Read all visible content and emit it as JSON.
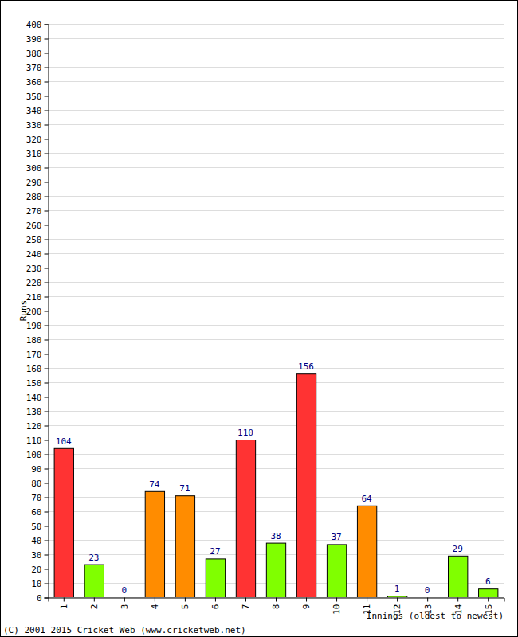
{
  "chart_data": {
    "type": "bar",
    "x_label": "Innings (oldest to newest)",
    "y_label": "Runs",
    "annotations": [
      "(C) 2001-2015 Cricket Web (www.cricketweb.net)"
    ],
    "categories": [
      "1",
      "2",
      "3",
      "4",
      "5",
      "6",
      "7",
      "8",
      "9",
      "10",
      "11",
      "12",
      "13",
      "14",
      "15"
    ],
    "values": [
      104,
      23,
      0,
      74,
      71,
      27,
      110,
      38,
      156,
      37,
      64,
      1,
      0,
      29,
      6
    ],
    "colors": [
      "#ff3333",
      "#80ff00",
      "#80ff00",
      "#ff8c00",
      "#ff8c00",
      "#80ff00",
      "#ff3333",
      "#80ff00",
      "#ff3333",
      "#80ff00",
      "#ff8c00",
      "#80ff00",
      "#80ff00",
      "#80ff00",
      "#80ff00"
    ],
    "ylim": [
      0,
      400
    ],
    "yticks": [
      0,
      10,
      20,
      30,
      40,
      50,
      60,
      70,
      80,
      90,
      100,
      110,
      120,
      130,
      140,
      150,
      160,
      170,
      180,
      190,
      200,
      210,
      220,
      230,
      240,
      250,
      260,
      270,
      280,
      290,
      300,
      310,
      320,
      330,
      340,
      350,
      360,
      370,
      380,
      390,
      400
    ],
    "grid": true,
    "data_labels": true
  }
}
